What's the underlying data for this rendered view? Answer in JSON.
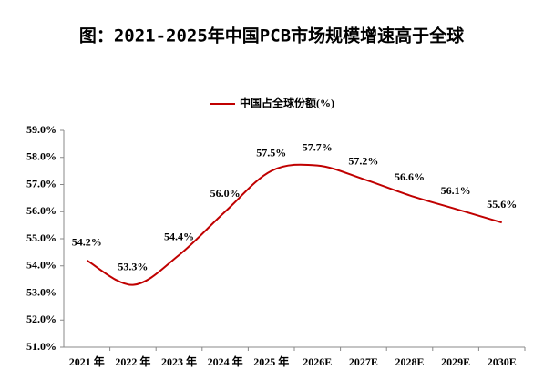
{
  "chart_data": {
    "type": "line",
    "title": "图：2021-2025年中国PCB市场规模增速高于全球",
    "categories": [
      "2021 年",
      "2022 年",
      "2023 年",
      "2024 年",
      "2025 年",
      "2026E",
      "2027E",
      "2028E",
      "2029E",
      "2030E"
    ],
    "series": [
      {
        "name": "中国占全球份额(%)",
        "color": "#c00000",
        "values": [
          54.2,
          53.3,
          54.4,
          56.0,
          57.5,
          57.7,
          57.2,
          56.6,
          56.1,
          55.6
        ],
        "value_labels": [
          "54.2%",
          "53.3%",
          "54.4%",
          "56.0%",
          "57.5%",
          "57.7%",
          "57.2%",
          "56.6%",
          "56.1%",
          "55.6%"
        ]
      }
    ],
    "ylim": [
      51,
      59
    ],
    "yticks": [
      {
        "value": 51,
        "label": "51.0%"
      },
      {
        "value": 52,
        "label": "52.0%"
      },
      {
        "value": 53,
        "label": "53.0%"
      },
      {
        "value": 54,
        "label": "54.0%"
      },
      {
        "value": 55,
        "label": "55.0%"
      },
      {
        "value": 56,
        "label": "56.0%"
      },
      {
        "value": 57,
        "label": "57.0%"
      },
      {
        "value": 58,
        "label": "58.0%"
      },
      {
        "value": 59,
        "label": "59.0%"
      }
    ],
    "legend": "top"
  }
}
